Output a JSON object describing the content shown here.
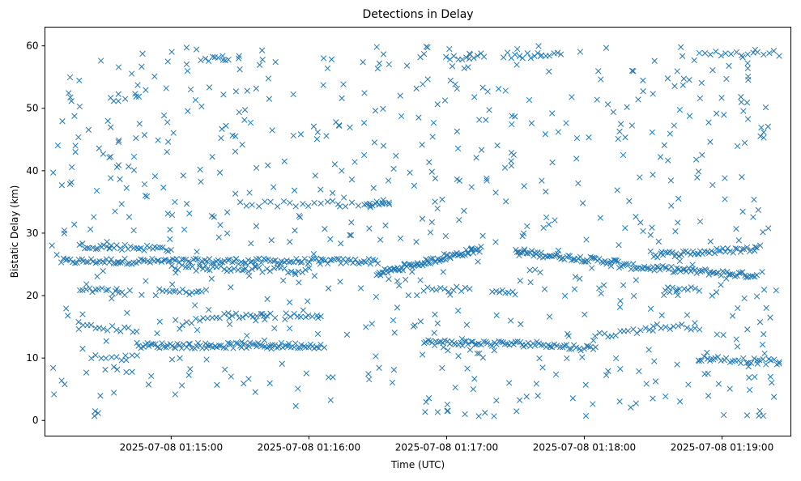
{
  "chart_data": {
    "type": "scatter",
    "title": "Detections in Delay",
    "xlabel": "Time (UTC)",
    "ylabel": "Bistatic Delay (km)",
    "marker": "x",
    "color": "#1f77b4",
    "grid": false,
    "x_axis": {
      "type": "time",
      "range": [
        "2025-07-08 01:14:05",
        "2025-07-08 01:19:30"
      ],
      "ticks": [
        {
          "t": "2025-07-08 01:15:00",
          "label": "2025-07-08 01:15:00"
        },
        {
          "t": "2025-07-08 01:16:00",
          "label": "2025-07-08 01:16:00"
        },
        {
          "t": "2025-07-08 01:17:00",
          "label": "2025-07-08 01:17:00"
        },
        {
          "t": "2025-07-08 01:18:00",
          "label": "2025-07-08 01:18:00"
        },
        {
          "t": "2025-07-08 01:19:00",
          "label": "2025-07-08 01:19:00"
        }
      ]
    },
    "y_axis": {
      "range": [
        -2.5,
        63
      ],
      "ticks": [
        0,
        10,
        20,
        30,
        40,
        50,
        60
      ]
    },
    "series": [
      {
        "kind": "track",
        "segments": [
          {
            "start": "2025-07-08 01:14:12",
            "end": "2025-07-08 01:16:30",
            "y": [
              25.5,
              25.5
            ],
            "count": 140
          },
          {
            "start": "2025-07-08 01:16:30",
            "end": "2025-07-08 01:17:15",
            "y": [
              23.5,
              27.5
            ],
            "count": 70
          },
          {
            "start": "2025-07-08 01:17:30",
            "end": "2025-07-08 01:18:15",
            "y": [
              27.0,
              25.3
            ],
            "count": 60
          },
          {
            "start": "2025-07-08 01:18:15",
            "end": "2025-07-08 01:19:15",
            "y": [
              24.8,
              23.2
            ],
            "count": 70
          },
          {
            "start": "2025-07-08 01:18:30",
            "end": "2025-07-08 01:19:15",
            "y": [
              26.5,
              27.5
            ],
            "count": 45
          },
          {
            "start": "2025-07-08 01:14:20",
            "end": "2025-07-08 01:15:00",
            "y": [
              28.0,
              27.5
            ],
            "count": 35
          },
          {
            "start": "2025-07-08 01:15:00",
            "end": "2025-07-08 01:16:00",
            "y": [
              24.5,
              24.0
            ],
            "count": 40
          },
          {
            "start": "2025-07-08 01:14:20",
            "end": "2025-07-08 01:14:40",
            "y": [
              21.0,
              20.5
            ],
            "count": 15
          },
          {
            "start": "2025-07-08 01:14:55",
            "end": "2025-07-08 01:15:15",
            "y": [
              20.6,
              20.6
            ],
            "count": 15
          },
          {
            "start": "2025-07-08 01:16:50",
            "end": "2025-07-08 01:17:10",
            "y": [
              21.0,
              21.0
            ],
            "count": 12
          },
          {
            "start": "2025-07-08 01:17:20",
            "end": "2025-07-08 01:17:30",
            "y": [
              20.6,
              20.6
            ],
            "count": 8
          },
          {
            "start": "2025-07-08 01:18:35",
            "end": "2025-07-08 01:18:50",
            "y": [
              21.0,
              21.0
            ],
            "count": 10
          },
          {
            "start": "2025-07-08 01:14:20",
            "end": "2025-07-08 01:14:45",
            "y": [
              15.0,
              14.5
            ],
            "count": 15
          },
          {
            "start": "2025-07-08 01:15:05",
            "end": "2025-07-08 01:15:25",
            "y": [
              15.5,
              17.0
            ],
            "count": 12
          },
          {
            "start": "2025-07-08 01:15:25",
            "end": "2025-07-08 01:15:45",
            "y": [
              16.8,
              16.8
            ],
            "count": 14
          },
          {
            "start": "2025-07-08 01:15:50",
            "end": "2025-07-08 01:16:05",
            "y": [
              16.8,
              16.8
            ],
            "count": 10
          },
          {
            "start": "2025-07-08 01:18:05",
            "end": "2025-07-08 01:18:30",
            "y": [
              13.5,
              14.8
            ],
            "count": 15
          },
          {
            "start": "2025-07-08 01:18:30",
            "end": "2025-07-08 01:18:50",
            "y": [
              15.0,
              15.0
            ],
            "count": 12
          },
          {
            "start": "2025-07-08 01:14:45",
            "end": "2025-07-08 01:16:05",
            "y": [
              12.0,
              12.0
            ],
            "count": 90
          },
          {
            "start": "2025-07-08 01:16:50",
            "end": "2025-07-08 01:17:45",
            "y": [
              12.5,
              12.2
            ],
            "count": 60
          },
          {
            "start": "2025-07-08 01:17:45",
            "end": "2025-07-08 01:18:05",
            "y": [
              12.0,
              11.5
            ],
            "count": 20
          },
          {
            "start": "2025-07-08 01:18:50",
            "end": "2025-07-08 01:19:25",
            "y": [
              10.0,
              9.3
            ],
            "count": 30
          },
          {
            "start": "2025-07-08 01:14:25",
            "end": "2025-07-08 01:14:45",
            "y": [
              10.0,
              10.0
            ],
            "count": 10
          },
          {
            "start": "2025-07-08 01:15:15",
            "end": "2025-07-08 01:15:25",
            "y": [
              58.0,
              58.0
            ],
            "count": 8
          },
          {
            "start": "2025-07-08 01:17:00",
            "end": "2025-07-08 01:17:15",
            "y": [
              58.0,
              58.5
            ],
            "count": 10
          },
          {
            "start": "2025-07-08 01:17:25",
            "end": "2025-07-08 01:17:50",
            "y": [
              58.5,
              58.5
            ],
            "count": 16
          },
          {
            "start": "2025-07-08 01:18:50",
            "end": "2025-07-08 01:19:25",
            "y": [
              58.8,
              58.8
            ],
            "count": 16
          },
          {
            "start": "2025-07-08 01:15:30",
            "end": "2025-07-08 01:16:35",
            "y": [
              34.7,
              34.7
            ],
            "count": 25
          },
          {
            "start": "2025-07-08 01:16:25",
            "end": "2025-07-08 01:16:35",
            "y": [
              34.7,
              34.7
            ],
            "count": 8
          }
        ]
      },
      {
        "kind": "scatter",
        "start": "2025-07-08 01:14:08",
        "end": "2025-07-08 01:19:25",
        "y_range": [
          0.5,
          60
        ],
        "count": 700
      }
    ]
  }
}
